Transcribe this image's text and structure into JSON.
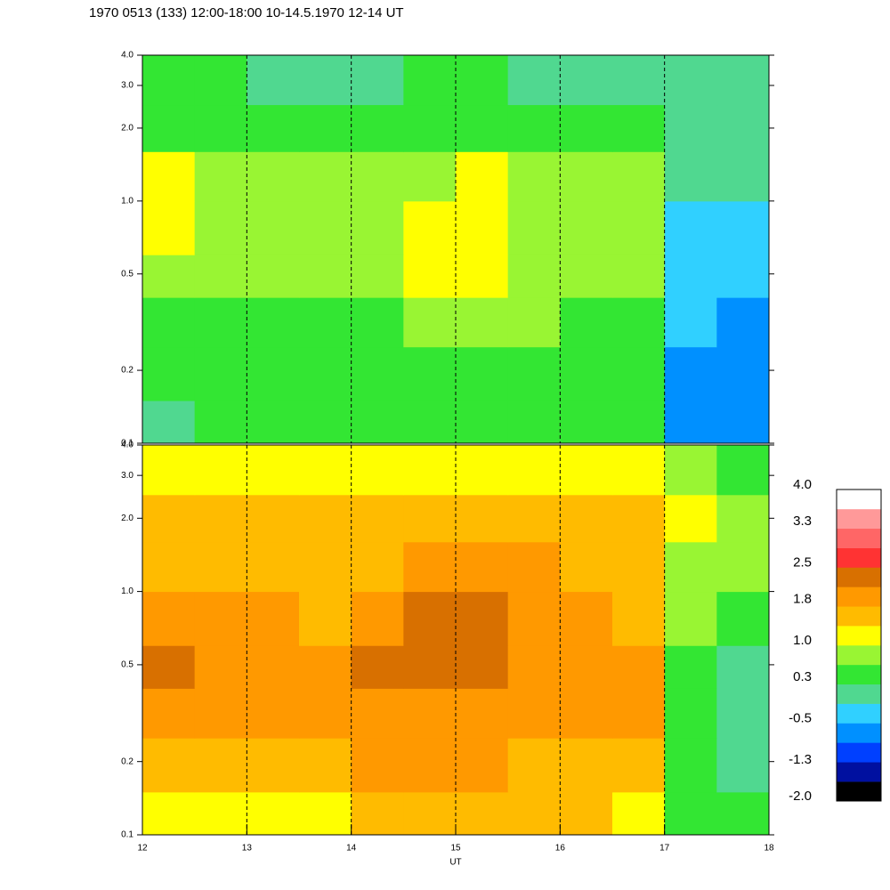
{
  "chart_data": {
    "type": "heatmap",
    "title": "1970 0513 (133) 12:00-18:00 10-14.5.1970  12-14 UT",
    "xlabel": "UT",
    "xlim": [
      12,
      18
    ],
    "xticks": [
      12,
      13,
      14,
      15,
      16,
      17,
      18
    ],
    "grid": true,
    "log_y": true,
    "ylim": [
      0.1,
      4.0
    ],
    "yticks": [
      0.1,
      0.2,
      0.5,
      {
        "value": 1,
        "label": "1.0"
      },
      {
        "value": 2,
        "label": "2.0"
      },
      {
        "value": 3,
        "label": "3.0"
      },
      {
        "value": 4,
        "label": "4.0"
      }
    ],
    "x_bins": [
      12,
      12.5,
      13,
      13.5,
      14,
      14.5,
      15,
      15.5,
      16,
      16.5,
      17,
      17.5,
      18
    ],
    "y_bins": [
      0.1,
      0.15,
      0.25,
      0.4,
      0.6,
      1.0,
      1.6,
      2.5,
      4.0
    ],
    "panels": [
      {
        "values": [
          [
            0.2,
            0.3,
            0.3,
            0.3,
            0.3,
            0.4,
            0.5,
            0.4,
            0.3,
            0.3,
            -0.6,
            -0.8
          ],
          [
            0.3,
            0.4,
            0.4,
            0.3,
            0.4,
            0.5,
            0.6,
            0.5,
            0.4,
            0.4,
            -0.6,
            -0.7
          ],
          [
            0.5,
            0.6,
            0.6,
            0.5,
            0.6,
            0.8,
            0.8,
            0.7,
            0.6,
            0.6,
            -0.5,
            -0.6
          ],
          [
            0.8,
            0.7,
            0.7,
            0.7,
            0.8,
            1.0,
            1.0,
            0.9,
            0.8,
            0.8,
            -0.4,
            -0.5
          ],
          [
            1.0,
            0.9,
            0.8,
            0.8,
            0.9,
            1.0,
            1.1,
            0.9,
            0.9,
            0.9,
            -0.2,
            -0.3
          ],
          [
            1.0,
            0.8,
            0.7,
            0.7,
            0.8,
            0.9,
            1.0,
            0.8,
            0.8,
            0.8,
            0.0,
            -0.1
          ],
          [
            0.6,
            0.6,
            0.5,
            0.5,
            0.5,
            0.6,
            0.6,
            0.5,
            0.5,
            0.5,
            0.1,
            0.1
          ],
          [
            0.3,
            0.3,
            0.2,
            0.2,
            0.2,
            0.3,
            0.3,
            0.2,
            0.2,
            0.2,
            0.0,
            0.0
          ]
        ]
      },
      {
        "values": [
          [
            1.2,
            1.3,
            1.3,
            1.3,
            1.6,
            1.5,
            1.5,
            1.4,
            1.4,
            1.2,
            0.4,
            0.3
          ],
          [
            1.6,
            1.6,
            1.7,
            1.7,
            1.9,
            1.8,
            1.8,
            1.7,
            1.7,
            1.6,
            0.3,
            0.1
          ],
          [
            2.0,
            1.9,
            1.9,
            1.8,
            2.0,
            2.0,
            2.1,
            2.0,
            1.9,
            1.8,
            0.3,
            0.0
          ],
          [
            2.2,
            2.1,
            2.0,
            1.9,
            2.2,
            2.2,
            2.3,
            2.1,
            2.0,
            1.9,
            0.5,
            0.2
          ],
          [
            1.9,
            1.8,
            1.8,
            1.7,
            2.0,
            2.2,
            2.2,
            2.0,
            1.8,
            1.7,
            0.7,
            0.5
          ],
          [
            1.7,
            1.6,
            1.6,
            1.6,
            1.7,
            1.8,
            1.9,
            1.8,
            1.7,
            1.6,
            0.8,
            0.7
          ],
          [
            1.6,
            1.5,
            1.5,
            1.5,
            1.5,
            1.6,
            1.7,
            1.6,
            1.5,
            1.5,
            1.0,
            0.9
          ],
          [
            1.1,
            1.1,
            1.0,
            1.0,
            1.0,
            1.1,
            1.1,
            1.0,
            1.0,
            1.0,
            0.7,
            0.6
          ]
        ]
      }
    ],
    "colorbar": {
      "clim": [
        -2,
        4
      ],
      "colors": [
        "#000000",
        "#0010a0",
        "#0040ff",
        "#0090ff",
        "#30d0ff",
        "#50d890",
        "#33e633",
        "#99f533",
        "#ffff00",
        "#ffbb00",
        "#ff9900",
        "#d87000",
        "#ff3333",
        "#ff6666",
        "#ff9999",
        "#ffffff"
      ],
      "ticks": [
        {
          "value": 4,
          "label": "4.0"
        },
        3.3,
        2.5,
        1.8,
        {
          "value": 1,
          "label": "1.0"
        },
        0.3,
        -0.5,
        -1.3,
        {
          "value": -2,
          "label": "-2.0"
        }
      ]
    }
  }
}
